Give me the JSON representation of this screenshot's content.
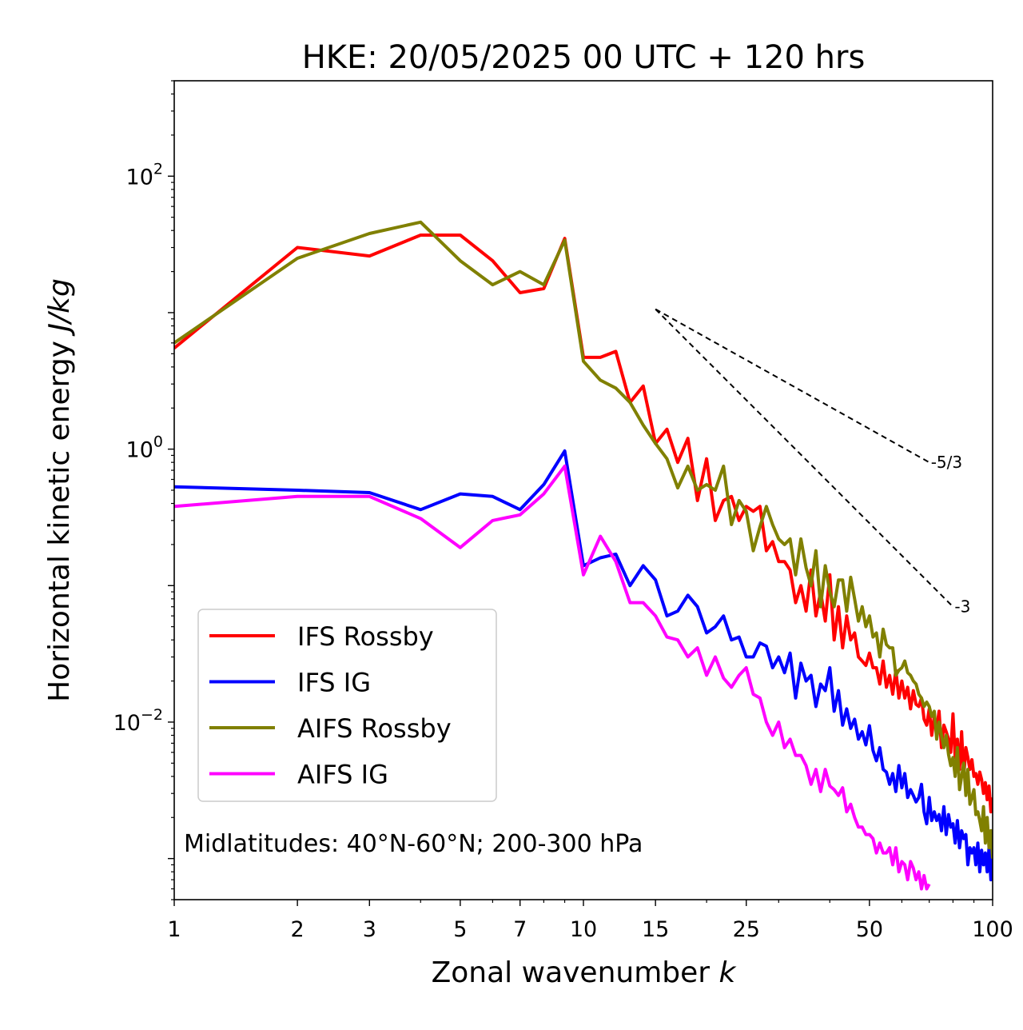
{
  "chart_data": {
    "type": "line",
    "title": "HKE: 20/05/2025 00 UTC + 120 hrs",
    "xlabel_prefix": "Zonal wavenumber ",
    "xlabel_var": "k",
    "ylabel_prefix": "Horizontal kinetic energy ",
    "ylabel_unit": "J/kg",
    "x_scale": "log",
    "y_scale": "log",
    "xlim": [
      1,
      100
    ],
    "ylim": [
      0.0005,
      500
    ],
    "x_ticks": [
      {
        "value": 1,
        "label": "1"
      },
      {
        "value": 2,
        "label": "2"
      },
      {
        "value": 3,
        "label": "3"
      },
      {
        "value": 5,
        "label": "5"
      },
      {
        "value": 7,
        "label": "7"
      },
      {
        "value": 10,
        "label": "10"
      },
      {
        "value": 15,
        "label": "15"
      },
      {
        "value": 25,
        "label": "25"
      },
      {
        "value": 50,
        "label": "50"
      },
      {
        "value": 100,
        "label": "100"
      }
    ],
    "y_ticks": [
      {
        "value": 100,
        "base": "10",
        "exp": "2"
      },
      {
        "value": 1,
        "base": "10",
        "exp": "0"
      },
      {
        "value": 0.01,
        "base": "10",
        "exp": "−2"
      }
    ],
    "grid": false,
    "legend_position": "bottom-left",
    "annotation": "Midlatitudes: 40°N-60°N; 200-300 hPa",
    "reference_slopes": [
      {
        "label": "-5/3",
        "x": [
          15,
          70
        ],
        "y": [
          10.6,
          0.8
        ]
      },
      {
        "label": "-3",
        "x": [
          15,
          80
        ],
        "y": [
          10.6,
          0.07
        ]
      }
    ],
    "series": [
      {
        "name": "IFS Rossby",
        "color": "#ff0000",
        "x": [
          1,
          2,
          3,
          4,
          5,
          6,
          7,
          8,
          9,
          10,
          11,
          12,
          13,
          14,
          15,
          16,
          17,
          18,
          19,
          20,
          21,
          22,
          23,
          24,
          25,
          26,
          27,
          28,
          29,
          30,
          31,
          32,
          33,
          34,
          35,
          36,
          37,
          38,
          39,
          40,
          41,
          42,
          43,
          44,
          45,
          46,
          47,
          48,
          49,
          50,
          51,
          52,
          53,
          54,
          55,
          56,
          57,
          58,
          59,
          60,
          61,
          62,
          63,
          64,
          65,
          66,
          67,
          68,
          69,
          70,
          71,
          72,
          73,
          74,
          75,
          76,
          77,
          78,
          79,
          80,
          81,
          82,
          83,
          84,
          85,
          86,
          87,
          88,
          89,
          90,
          91,
          92,
          93,
          94,
          95,
          96,
          97,
          98,
          99,
          100
        ],
        "y": [
          5.5,
          30,
          26,
          37,
          37,
          24,
          14,
          15,
          35,
          4.7,
          4.7,
          5.2,
          2.2,
          2.9,
          1.1,
          1.4,
          0.8,
          1.2,
          0.42,
          0.85,
          0.3,
          0.42,
          0.45,
          0.3,
          0.38,
          0.35,
          0.38,
          0.18,
          0.21,
          0.15,
          0.15,
          0.13,
          0.075,
          0.1,
          0.065,
          0.13,
          0.06,
          0.09,
          0.055,
          0.12,
          0.04,
          0.07,
          0.035,
          0.06,
          0.04,
          0.045,
          0.03,
          0.028,
          0.026,
          0.032,
          0.025,
          0.025,
          0.019,
          0.028,
          0.018,
          0.022,
          0.016,
          0.024,
          0.015,
          0.02,
          0.015,
          0.018,
          0.0125,
          0.017,
          0.0135,
          0.013,
          0.015,
          0.0105,
          0.0095,
          0.0125,
          0.008,
          0.011,
          0.009,
          0.012,
          0.0065,
          0.0095,
          0.0085,
          0.0075,
          0.006,
          0.0115,
          0.0055,
          0.0075,
          0.0045,
          0.0085,
          0.004,
          0.0065,
          0.0055,
          0.0045,
          0.0053,
          0.004,
          0.0042,
          0.0035,
          0.0043,
          0.0038,
          0.003,
          0.0036,
          0.0027,
          0.0034,
          0.0022,
          0.0028
        ]
      },
      {
        "name": "IFS IG",
        "color": "#0000ff",
        "x": [
          1,
          2,
          3,
          4,
          5,
          6,
          7,
          8,
          9,
          10,
          11,
          12,
          13,
          14,
          15,
          16,
          17,
          18,
          19,
          20,
          21,
          22,
          23,
          24,
          25,
          26,
          27,
          28,
          29,
          30,
          31,
          32,
          33,
          34,
          35,
          36,
          37,
          38,
          39,
          40,
          41,
          42,
          43,
          44,
          45,
          46,
          47,
          48,
          49,
          50,
          51,
          52,
          53,
          54,
          55,
          56,
          57,
          58,
          59,
          60,
          61,
          62,
          63,
          64,
          65,
          66,
          67,
          68,
          69,
          70,
          71,
          72,
          73,
          74,
          75,
          76,
          77,
          78,
          79,
          80,
          81,
          82,
          83,
          84,
          85,
          86,
          87,
          88,
          89,
          90,
          91,
          92,
          93,
          94,
          95,
          96,
          97,
          98,
          99,
          100
        ],
        "y": [
          0.53,
          0.5,
          0.48,
          0.36,
          0.47,
          0.45,
          0.36,
          0.55,
          0.97,
          0.14,
          0.16,
          0.17,
          0.1,
          0.14,
          0.11,
          0.06,
          0.065,
          0.085,
          0.07,
          0.045,
          0.05,
          0.06,
          0.04,
          0.042,
          0.03,
          0.03,
          0.038,
          0.036,
          0.025,
          0.03,
          0.023,
          0.032,
          0.015,
          0.027,
          0.02,
          0.022,
          0.013,
          0.019,
          0.017,
          0.025,
          0.012,
          0.017,
          0.0095,
          0.0125,
          0.009,
          0.0105,
          0.0075,
          0.0085,
          0.0068,
          0.0094,
          0.0062,
          0.0052,
          0.0065,
          0.0045,
          0.0043,
          0.0035,
          0.0042,
          0.0031,
          0.0048,
          0.0033,
          0.0042,
          0.0028,
          0.0032,
          0.0029,
          0.0026,
          0.0028,
          0.0035,
          0.0022,
          0.0018,
          0.0028,
          0.0019,
          0.0022,
          0.0019,
          0.0021,
          0.0016,
          0.0024,
          0.0015,
          0.0021,
          0.0017,
          0.0018,
          0.0013,
          0.0019,
          0.0012,
          0.0016,
          0.0014,
          0.0015,
          0.0009,
          0.0012,
          0.0011,
          0.0012,
          0.0009,
          0.0013,
          0.0008,
          0.00115,
          0.0009,
          0.0011,
          0.0008,
          0.0012,
          0.0007,
          0.0011
        ]
      },
      {
        "name": "AIFS Rossby",
        "color": "#808000",
        "x": [
          1,
          2,
          3,
          4,
          5,
          6,
          7,
          8,
          9,
          10,
          11,
          12,
          13,
          14,
          15,
          16,
          17,
          18,
          19,
          20,
          21,
          22,
          23,
          24,
          25,
          26,
          27,
          28,
          29,
          30,
          31,
          32,
          33,
          34,
          35,
          36,
          37,
          38,
          39,
          40,
          41,
          42,
          43,
          44,
          45,
          46,
          47,
          48,
          49,
          50,
          51,
          52,
          53,
          54,
          55,
          56,
          57,
          58,
          59,
          60,
          61,
          62,
          63,
          64,
          65,
          66,
          67,
          68,
          69,
          70,
          71,
          72,
          73,
          74,
          75,
          76,
          77,
          78,
          79,
          80,
          81,
          82,
          83,
          84,
          85,
          86,
          87,
          88,
          89,
          90,
          91,
          92,
          93,
          94,
          95,
          96,
          97,
          98,
          99,
          100
        ],
        "y": [
          6,
          25,
          38,
          46,
          24,
          16,
          20,
          16,
          34,
          4.4,
          3.2,
          2.8,
          2.2,
          1.5,
          1.1,
          0.85,
          0.52,
          0.75,
          0.5,
          0.55,
          0.5,
          0.75,
          0.28,
          0.42,
          0.35,
          0.18,
          0.27,
          0.38,
          0.28,
          0.22,
          0.2,
          0.22,
          0.12,
          0.22,
          0.135,
          0.1,
          0.18,
          0.07,
          0.14,
          0.09,
          0.07,
          0.11,
          0.11,
          0.065,
          0.115,
          0.08,
          0.055,
          0.07,
          0.05,
          0.06,
          0.042,
          0.045,
          0.03,
          0.048,
          0.037,
          0.035,
          0.035,
          0.022,
          0.024,
          0.025,
          0.028,
          0.023,
          0.022,
          0.02,
          0.019,
          0.016,
          0.015,
          0.013,
          0.014,
          0.013,
          0.011,
          0.012,
          0.0075,
          0.01,
          0.008,
          0.0065,
          0.008,
          0.0058,
          0.0048,
          0.0055,
          0.004,
          0.0065,
          0.0032,
          0.004,
          0.005,
          0.0029,
          0.0045,
          0.0025,
          0.0028,
          0.0032,
          0.0021,
          0.0022,
          0.0019,
          0.0016,
          0.0024,
          0.0013,
          0.002,
          0.0012,
          0.0016,
          0.001
        ]
      },
      {
        "name": "AIFS IG",
        "color": "#ff00ff",
        "x": [
          1,
          2,
          3,
          4,
          5,
          6,
          7,
          8,
          9,
          10,
          11,
          12,
          13,
          14,
          15,
          16,
          17,
          18,
          19,
          20,
          21,
          22,
          23,
          24,
          25,
          26,
          27,
          28,
          29,
          30,
          31,
          32,
          33,
          34,
          35,
          36,
          37,
          38,
          39,
          40,
          41,
          42,
          43,
          44,
          45,
          46,
          47,
          48,
          49,
          50,
          51,
          52,
          53,
          54,
          55,
          56,
          57,
          58,
          59,
          60,
          61,
          62,
          63,
          64,
          65,
          66,
          67,
          68,
          69,
          70
        ],
        "y": [
          0.38,
          0.45,
          0.45,
          0.31,
          0.19,
          0.3,
          0.33,
          0.47,
          0.75,
          0.12,
          0.23,
          0.15,
          0.075,
          0.075,
          0.06,
          0.042,
          0.04,
          0.03,
          0.035,
          0.022,
          0.03,
          0.021,
          0.018,
          0.022,
          0.025,
          0.016,
          0.015,
          0.01,
          0.008,
          0.01,
          0.0065,
          0.0075,
          0.0057,
          0.0057,
          0.0048,
          0.0035,
          0.0045,
          0.0031,
          0.0045,
          0.0034,
          0.0032,
          0.0029,
          0.0033,
          0.0022,
          0.0025,
          0.002,
          0.0017,
          0.0017,
          0.0015,
          0.0015,
          0.0014,
          0.0011,
          0.0013,
          0.0011,
          0.0011,
          0.0012,
          0.0009,
          0.0012,
          0.0008,
          0.00095,
          0.0009,
          0.0007,
          0.00095,
          0.00085,
          0.0007,
          0.0008,
          0.0006,
          0.00075,
          0.0006,
          0.00065
        ]
      }
    ]
  }
}
